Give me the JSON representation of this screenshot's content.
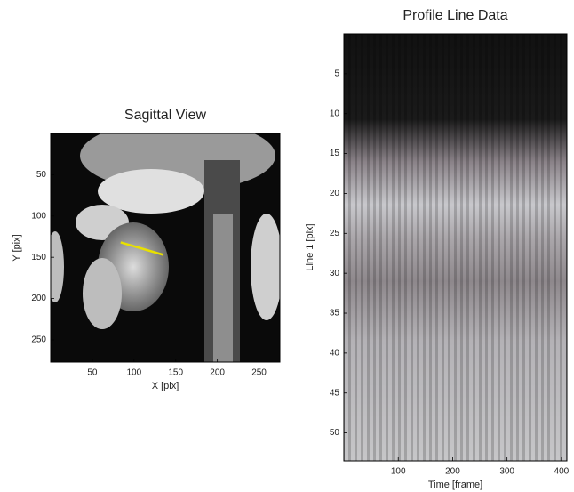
{
  "chart_data": [
    {
      "type": "image",
      "title": "Sagittal View",
      "x_label": "X [pix]",
      "y_label": "Y [pix]",
      "xlim": [
        0,
        275
      ],
      "ylim": [
        0,
        277
      ],
      "y_inverted": true,
      "xticks": [
        50,
        100,
        150,
        200,
        250
      ],
      "yticks": [
        50,
        100,
        150,
        200,
        250
      ],
      "profile_line": {
        "x": [
          84,
          135
        ],
        "y": [
          132,
          147
        ],
        "color": "#e8e000"
      }
    },
    {
      "type": "image",
      "title": "Profile Line Data",
      "x_label": "Time [frame]",
      "y_label": "Line 1 [pix]",
      "xlim": [
        0,
        410
      ],
      "ylim": [
        0,
        53.5
      ],
      "y_inverted": true,
      "xticks": [
        100,
        200,
        300,
        400
      ],
      "yticks": [
        5,
        10,
        15,
        20,
        25,
        30,
        35,
        40,
        45,
        50
      ]
    }
  ]
}
